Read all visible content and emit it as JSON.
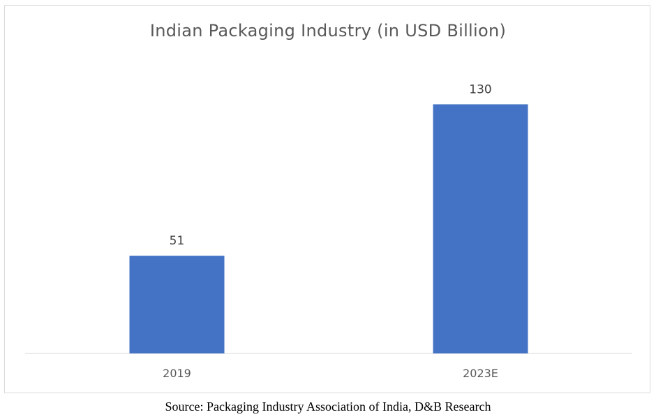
{
  "chart_data": {
    "type": "bar",
    "title": "Indian Packaging Industry (in USD Billion)",
    "categories": [
      "2019",
      "2023E"
    ],
    "values": [
      51,
      130
    ],
    "data_labels": [
      "51",
      "130"
    ],
    "xlabel": "",
    "ylabel": "",
    "ylim": [
      0,
      148
    ],
    "grid": false,
    "legend": "none",
    "bar_color": "#4472c4",
    "axis_color": "#d9d9d9"
  },
  "source": "Source: Packaging Industry Association of India, D&B Research"
}
